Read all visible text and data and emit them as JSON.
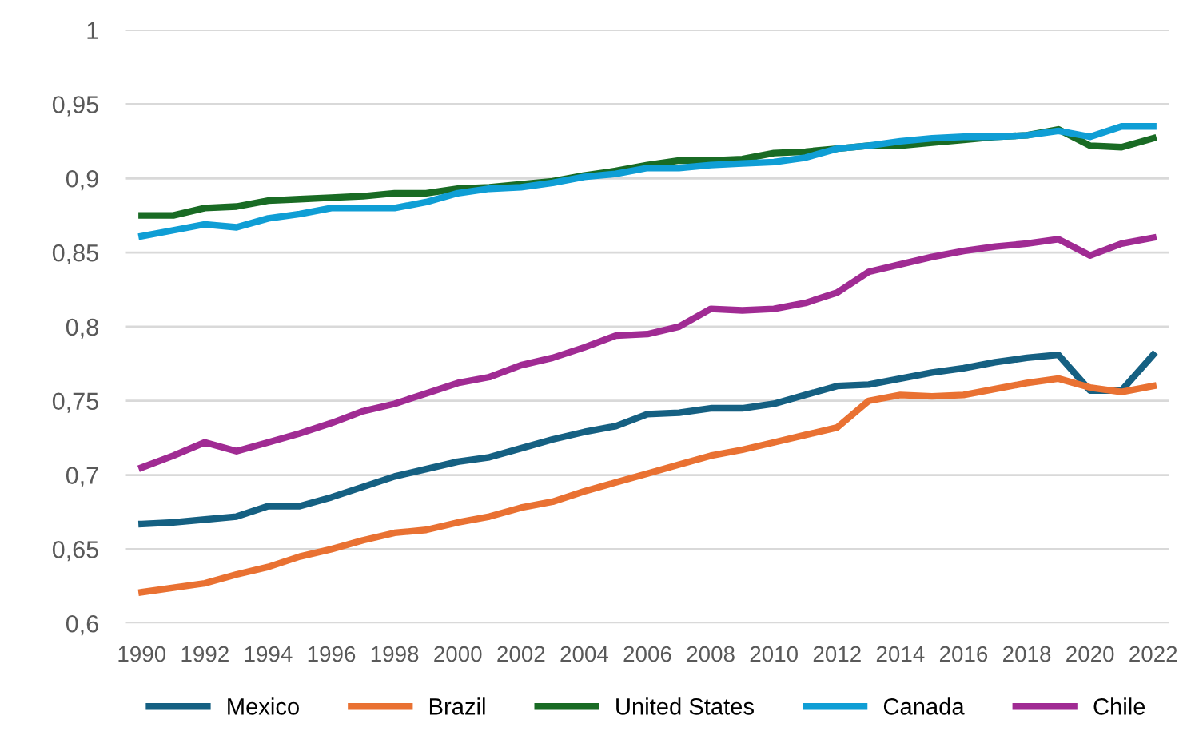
{
  "chart_data": {
    "type": "line",
    "categories": [
      "1990",
      null,
      "1992",
      null,
      "1994",
      null,
      "1996",
      null,
      "1998",
      null,
      "2000",
      null,
      "2002",
      null,
      "2004",
      null,
      "2006",
      null,
      "2008",
      null,
      "2010",
      null,
      "2012",
      null,
      "2014",
      null,
      "2016",
      null,
      "2018",
      null,
      "2020",
      null,
      "2022"
    ],
    "series": [
      {
        "name": "Mexico",
        "color": "#156082",
        "values": [
          0.667,
          0.668,
          0.67,
          0.672,
          0.679,
          0.679,
          0.685,
          0.692,
          0.699,
          0.704,
          0.709,
          0.712,
          0.718,
          0.724,
          0.729,
          0.733,
          0.741,
          0.742,
          0.745,
          0.745,
          0.748,
          0.754,
          0.76,
          0.761,
          0.765,
          0.769,
          0.772,
          0.776,
          0.779,
          0.781,
          0.757,
          0.757,
          0.781
        ]
      },
      {
        "name": "Brazil",
        "color": "#e97132",
        "values": [
          0.621,
          0.624,
          0.627,
          0.633,
          0.638,
          0.645,
          0.65,
          0.656,
          0.661,
          0.663,
          0.668,
          0.672,
          0.678,
          0.682,
          0.689,
          0.695,
          0.701,
          0.707,
          0.713,
          0.717,
          0.722,
          0.727,
          0.732,
          0.75,
          0.754,
          0.753,
          0.754,
          0.758,
          0.762,
          0.765,
          0.759,
          0.756,
          0.76
        ]
      },
      {
        "name": "United States",
        "color": "#196b24",
        "values": [
          0.875,
          0.875,
          0.88,
          0.881,
          0.885,
          0.886,
          0.887,
          0.888,
          0.89,
          0.89,
          0.893,
          0.894,
          0.896,
          0.898,
          0.902,
          0.905,
          0.909,
          0.912,
          0.912,
          0.913,
          0.917,
          0.918,
          0.92,
          0.922,
          0.922,
          0.924,
          0.926,
          0.928,
          0.929,
          0.933,
          0.922,
          0.921,
          0.927
        ]
      },
      {
        "name": "Canada",
        "color": "#0f9ed5",
        "values": [
          0.861,
          0.865,
          0.869,
          0.867,
          0.873,
          0.876,
          0.88,
          0.88,
          0.88,
          0.884,
          0.89,
          0.893,
          0.894,
          0.897,
          0.901,
          0.903,
          0.907,
          0.907,
          0.909,
          0.91,
          0.911,
          0.914,
          0.92,
          0.922,
          0.925,
          0.927,
          0.928,
          0.928,
          0.929,
          0.932,
          0.928,
          0.935,
          0.935
        ]
      },
      {
        "name": "Chile",
        "color": "#a02b93",
        "values": [
          0.705,
          0.713,
          0.722,
          0.716,
          0.722,
          0.728,
          0.735,
          0.743,
          0.748,
          0.755,
          0.762,
          0.766,
          0.774,
          0.779,
          0.786,
          0.794,
          0.795,
          0.8,
          0.812,
          0.811,
          0.812,
          0.816,
          0.823,
          0.837,
          0.842,
          0.847,
          0.851,
          0.854,
          0.856,
          0.859,
          0.848,
          0.856,
          0.86
        ]
      }
    ],
    "ylim": [
      0.6,
      1
    ],
    "yticks": [
      {
        "value": 0.6,
        "label": "0,6"
      },
      {
        "value": 0.65,
        "label": "0,65"
      },
      {
        "value": 0.7,
        "label": "0,7"
      },
      {
        "value": 0.75,
        "label": "0,75"
      },
      {
        "value": 0.8,
        "label": "0,8"
      },
      {
        "value": 0.85,
        "label": "0,85"
      },
      {
        "value": 0.9,
        "label": "0,9"
      },
      {
        "value": 0.95,
        "label": "0,95"
      },
      {
        "value": 1,
        "label": "1"
      }
    ],
    "grid": "y",
    "legend": "bottom",
    "line_style": "solid"
  }
}
